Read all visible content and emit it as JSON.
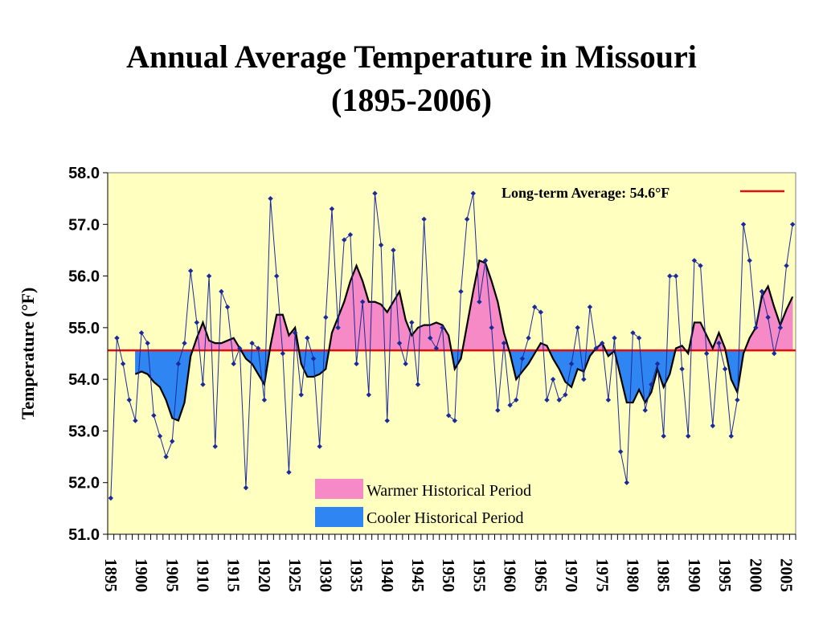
{
  "title": {
    "line1": "Annual Average Temperature in Missouri",
    "line2": "(1895-2006)"
  },
  "colors": {
    "plot_background": "#ffffc0",
    "warm_fill": "#f58ac6",
    "cool_fill": "#2f86f2",
    "series_line": "#1a2a9a",
    "marker": "#1a2a9a",
    "smooth_line": "#000000",
    "average_line": "#e01010"
  },
  "chart_data": {
    "type": "line",
    "title": "Annual Average Temperature in Missouri (1895-2006)",
    "xlabel": "",
    "ylabel": "Temperature (°F)",
    "ylim": [
      51.0,
      58.0
    ],
    "xlim": [
      1895,
      2006
    ],
    "y_ticks": [
      "51.0",
      "52.0",
      "53.0",
      "54.0",
      "55.0",
      "56.0",
      "57.0",
      "58.0"
    ],
    "x_tick_labels": [
      "1895",
      "1900",
      "1905",
      "1910",
      "1915",
      "1920",
      "1925",
      "1930",
      "1935",
      "1940",
      "1945",
      "1950",
      "1955",
      "1960",
      "1965",
      "1970",
      "1975",
      "1980",
      "1985",
      "1990",
      "1995",
      "2000",
      "2005"
    ],
    "grid": false,
    "long_term_average": 54.56,
    "long_term_average_label": "Long-term Average: 54.6°F",
    "legend": [
      {
        "label": "Warmer Historical Period",
        "color": "#f58ac6"
      },
      {
        "label": "Cooler Historical Period",
        "color": "#2f86f2"
      }
    ],
    "series": [
      {
        "values": [
          {
            "x": 1895,
            "y": 51.7
          },
          {
            "x": 1896,
            "y": 54.8
          },
          {
            "x": 1897,
            "y": 54.3
          },
          {
            "x": 1898,
            "y": 53.6
          },
          {
            "x": 1899,
            "y": 53.2
          },
          {
            "x": 1900,
            "y": 54.9
          },
          {
            "x": 1901,
            "y": 54.7
          },
          {
            "x": 1902,
            "y": 53.3
          },
          {
            "x": 1903,
            "y": 52.9
          },
          {
            "x": 1904,
            "y": 52.5
          },
          {
            "x": 1905,
            "y": 52.8
          },
          {
            "x": 1906,
            "y": 54.3
          },
          {
            "x": 1907,
            "y": 54.7
          },
          {
            "x": 1908,
            "y": 56.1
          },
          {
            "x": 1909,
            "y": 55.1
          },
          {
            "x": 1910,
            "y": 53.9
          },
          {
            "x": 1911,
            "y": 56.0
          },
          {
            "x": 1912,
            "y": 52.7
          },
          {
            "x": 1913,
            "y": 55.7
          },
          {
            "x": 1914,
            "y": 55.4
          },
          {
            "x": 1915,
            "y": 54.3
          },
          {
            "x": 1916,
            "y": 54.6
          },
          {
            "x": 1917,
            "y": 51.9
          },
          {
            "x": 1918,
            "y": 54.7
          },
          {
            "x": 1919,
            "y": 54.6
          },
          {
            "x": 1920,
            "y": 53.6
          },
          {
            "x": 1921,
            "y": 57.5
          },
          {
            "x": 1922,
            "y": 56.0
          },
          {
            "x": 1923,
            "y": 54.5
          },
          {
            "x": 1924,
            "y": 52.2
          },
          {
            "x": 1925,
            "y": 54.9
          },
          {
            "x": 1926,
            "y": 53.7
          },
          {
            "x": 1927,
            "y": 54.8
          },
          {
            "x": 1928,
            "y": 54.4
          },
          {
            "x": 1929,
            "y": 52.7
          },
          {
            "x": 1930,
            "y": 55.2
          },
          {
            "x": 1931,
            "y": 57.3
          },
          {
            "x": 1932,
            "y": 55.0
          },
          {
            "x": 1933,
            "y": 56.7
          },
          {
            "x": 1934,
            "y": 56.8
          },
          {
            "x": 1935,
            "y": 54.3
          },
          {
            "x": 1936,
            "y": 55.5
          },
          {
            "x": 1937,
            "y": 53.7
          },
          {
            "x": 1938,
            "y": 57.6
          },
          {
            "x": 1939,
            "y": 56.6
          },
          {
            "x": 1940,
            "y": 53.2
          },
          {
            "x": 1941,
            "y": 56.5
          },
          {
            "x": 1942,
            "y": 54.7
          },
          {
            "x": 1943,
            "y": 54.3
          },
          {
            "x": 1944,
            "y": 55.1
          },
          {
            "x": 1945,
            "y": 53.9
          },
          {
            "x": 1946,
            "y": 57.1
          },
          {
            "x": 1947,
            "y": 54.8
          },
          {
            "x": 1948,
            "y": 54.6
          },
          {
            "x": 1949,
            "y": 55.0
          },
          {
            "x": 1950,
            "y": 53.3
          },
          {
            "x": 1951,
            "y": 53.2
          },
          {
            "x": 1952,
            "y": 55.7
          },
          {
            "x": 1953,
            "y": 57.1
          },
          {
            "x": 1954,
            "y": 57.6
          },
          {
            "x": 1955,
            "y": 55.5
          },
          {
            "x": 1956,
            "y": 56.3
          },
          {
            "x": 1957,
            "y": 55.0
          },
          {
            "x": 1958,
            "y": 53.4
          },
          {
            "x": 1959,
            "y": 54.7
          },
          {
            "x": 1960,
            "y": 53.5
          },
          {
            "x": 1961,
            "y": 53.6
          },
          {
            "x": 1962,
            "y": 54.4
          },
          {
            "x": 1963,
            "y": 54.8
          },
          {
            "x": 1964,
            "y": 55.4
          },
          {
            "x": 1965,
            "y": 55.3
          },
          {
            "x": 1966,
            "y": 53.6
          },
          {
            "x": 1967,
            "y": 54.0
          },
          {
            "x": 1968,
            "y": 53.6
          },
          {
            "x": 1969,
            "y": 53.7
          },
          {
            "x": 1970,
            "y": 54.3
          },
          {
            "x": 1971,
            "y": 55.0
          },
          {
            "x": 1972,
            "y": 54.0
          },
          {
            "x": 1973,
            "y": 55.4
          },
          {
            "x": 1974,
            "y": 54.6
          },
          {
            "x": 1975,
            "y": 54.7
          },
          {
            "x": 1976,
            "y": 53.6
          },
          {
            "x": 1977,
            "y": 54.8
          },
          {
            "x": 1978,
            "y": 52.6
          },
          {
            "x": 1979,
            "y": 52.0
          },
          {
            "x": 1980,
            "y": 54.9
          },
          {
            "x": 1981,
            "y": 54.8
          },
          {
            "x": 1982,
            "y": 53.4
          },
          {
            "x": 1983,
            "y": 53.9
          },
          {
            "x": 1984,
            "y": 54.3
          },
          {
            "x": 1985,
            "y": 52.9
          },
          {
            "x": 1986,
            "y": 56.0
          },
          {
            "x": 1987,
            "y": 56.0
          },
          {
            "x": 1988,
            "y": 54.2
          },
          {
            "x": 1989,
            "y": 52.9
          },
          {
            "x": 1990,
            "y": 56.3
          },
          {
            "x": 1991,
            "y": 56.2
          },
          {
            "x": 1992,
            "y": 54.5
          },
          {
            "x": 1993,
            "y": 53.1
          },
          {
            "x": 1994,
            "y": 54.7
          },
          {
            "x": 1995,
            "y": 54.2
          },
          {
            "x": 1996,
            "y": 52.9
          },
          {
            "x": 1997,
            "y": 53.6
          },
          {
            "x": 1998,
            "y": 57.0
          },
          {
            "x": 1999,
            "y": 56.3
          },
          {
            "x": 2000,
            "y": 55.0
          },
          {
            "x": 2001,
            "y": 55.7
          },
          {
            "x": 2002,
            "y": 55.2
          },
          {
            "x": 2003,
            "y": 54.5
          },
          {
            "x": 2004,
            "y": 55.0
          },
          {
            "x": 2005,
            "y": 56.2
          },
          {
            "x": 2006,
            "y": 57.0
          }
        ]
      }
    ],
    "smoothed": [
      {
        "x": 1899,
        "y": 54.1
      },
      {
        "x": 1900,
        "y": 54.15
      },
      {
        "x": 1901,
        "y": 54.1
      },
      {
        "x": 1902,
        "y": 53.95
      },
      {
        "x": 1903,
        "y": 53.85
      },
      {
        "x": 1904,
        "y": 53.6
      },
      {
        "x": 1905,
        "y": 53.25
      },
      {
        "x": 1906,
        "y": 53.2
      },
      {
        "x": 1907,
        "y": 53.55
      },
      {
        "x": 1908,
        "y": 54.45
      },
      {
        "x": 1909,
        "y": 54.8
      },
      {
        "x": 1910,
        "y": 55.1
      },
      {
        "x": 1911,
        "y": 54.75
      },
      {
        "x": 1912,
        "y": 54.7
      },
      {
        "x": 1913,
        "y": 54.7
      },
      {
        "x": 1914,
        "y": 54.75
      },
      {
        "x": 1915,
        "y": 54.8
      },
      {
        "x": 1916,
        "y": 54.6
      },
      {
        "x": 1917,
        "y": 54.4
      },
      {
        "x": 1918,
        "y": 54.3
      },
      {
        "x": 1919,
        "y": 54.1
      },
      {
        "x": 1920,
        "y": 53.9
      },
      {
        "x": 1921,
        "y": 54.65
      },
      {
        "x": 1922,
        "y": 55.25
      },
      {
        "x": 1923,
        "y": 55.25
      },
      {
        "x": 1924,
        "y": 54.85
      },
      {
        "x": 1925,
        "y": 55.0
      },
      {
        "x": 1926,
        "y": 54.3
      },
      {
        "x": 1927,
        "y": 54.05
      },
      {
        "x": 1928,
        "y": 54.05
      },
      {
        "x": 1929,
        "y": 54.1
      },
      {
        "x": 1930,
        "y": 54.2
      },
      {
        "x": 1931,
        "y": 54.9
      },
      {
        "x": 1932,
        "y": 55.2
      },
      {
        "x": 1933,
        "y": 55.5
      },
      {
        "x": 1934,
        "y": 55.9
      },
      {
        "x": 1935,
        "y": 56.2
      },
      {
        "x": 1936,
        "y": 55.9
      },
      {
        "x": 1937,
        "y": 55.5
      },
      {
        "x": 1938,
        "y": 55.5
      },
      {
        "x": 1939,
        "y": 55.45
      },
      {
        "x": 1940,
        "y": 55.3
      },
      {
        "x": 1941,
        "y": 55.5
      },
      {
        "x": 1942,
        "y": 55.7
      },
      {
        "x": 1943,
        "y": 55.15
      },
      {
        "x": 1944,
        "y": 54.85
      },
      {
        "x": 1945,
        "y": 55.0
      },
      {
        "x": 1946,
        "y": 55.05
      },
      {
        "x": 1947,
        "y": 55.05
      },
      {
        "x": 1948,
        "y": 55.1
      },
      {
        "x": 1949,
        "y": 55.05
      },
      {
        "x": 1950,
        "y": 54.85
      },
      {
        "x": 1951,
        "y": 54.2
      },
      {
        "x": 1952,
        "y": 54.4
      },
      {
        "x": 1953,
        "y": 55.05
      },
      {
        "x": 1954,
        "y": 55.7
      },
      {
        "x": 1955,
        "y": 56.3
      },
      {
        "x": 1956,
        "y": 56.25
      },
      {
        "x": 1957,
        "y": 55.9
      },
      {
        "x": 1958,
        "y": 55.5
      },
      {
        "x": 1959,
        "y": 54.9
      },
      {
        "x": 1960,
        "y": 54.5
      },
      {
        "x": 1961,
        "y": 54.0
      },
      {
        "x": 1962,
        "y": 54.15
      },
      {
        "x": 1963,
        "y": 54.3
      },
      {
        "x": 1964,
        "y": 54.5
      },
      {
        "x": 1965,
        "y": 54.7
      },
      {
        "x": 1966,
        "y": 54.65
      },
      {
        "x": 1967,
        "y": 54.4
      },
      {
        "x": 1968,
        "y": 54.2
      },
      {
        "x": 1969,
        "y": 53.95
      },
      {
        "x": 1970,
        "y": 53.85
      },
      {
        "x": 1971,
        "y": 54.2
      },
      {
        "x": 1972,
        "y": 54.15
      },
      {
        "x": 1973,
        "y": 54.45
      },
      {
        "x": 1974,
        "y": 54.6
      },
      {
        "x": 1975,
        "y": 54.7
      },
      {
        "x": 1976,
        "y": 54.45
      },
      {
        "x": 1977,
        "y": 54.55
      },
      {
        "x": 1978,
        "y": 54.05
      },
      {
        "x": 1979,
        "y": 53.55
      },
      {
        "x": 1980,
        "y": 53.55
      },
      {
        "x": 1981,
        "y": 53.8
      },
      {
        "x": 1982,
        "y": 53.55
      },
      {
        "x": 1983,
        "y": 53.75
      },
      {
        "x": 1984,
        "y": 54.2
      },
      {
        "x": 1985,
        "y": 53.85
      },
      {
        "x": 1986,
        "y": 54.1
      },
      {
        "x": 1987,
        "y": 54.6
      },
      {
        "x": 1988,
        "y": 54.65
      },
      {
        "x": 1989,
        "y": 54.5
      },
      {
        "x": 1990,
        "y": 55.1
      },
      {
        "x": 1991,
        "y": 55.1
      },
      {
        "x": 1992,
        "y": 54.85
      },
      {
        "x": 1993,
        "y": 54.6
      },
      {
        "x": 1994,
        "y": 54.9
      },
      {
        "x": 1995,
        "y": 54.6
      },
      {
        "x": 1996,
        "y": 54.0
      },
      {
        "x": 1997,
        "y": 53.75
      },
      {
        "x": 1998,
        "y": 54.5
      },
      {
        "x": 1999,
        "y": 54.8
      },
      {
        "x": 2000,
        "y": 55.0
      },
      {
        "x": 2001,
        "y": 55.6
      },
      {
        "x": 2002,
        "y": 55.8
      },
      {
        "x": 2003,
        "y": 55.4
      },
      {
        "x": 2004,
        "y": 55.05
      },
      {
        "x": 2005,
        "y": 55.35
      },
      {
        "x": 2006,
        "y": 55.6
      }
    ]
  }
}
